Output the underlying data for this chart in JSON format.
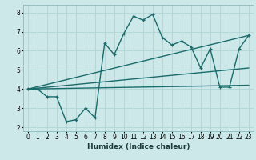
{
  "title": "",
  "xlabel": "Humidex (Indice chaleur)",
  "ylabel": "",
  "bg_color": "#cce8e8",
  "grid_color": "#b0d4d4",
  "line_color": "#1a6b6b",
  "x_ticks": [
    0,
    1,
    2,
    3,
    4,
    5,
    6,
    7,
    8,
    9,
    10,
    11,
    12,
    13,
    14,
    15,
    16,
    17,
    18,
    19,
    20,
    21,
    22,
    23
  ],
  "ylim": [
    1.8,
    8.4
  ],
  "xlim": [
    -0.5,
    23.5
  ],
  "series": [
    {
      "x": [
        0,
        1,
        2,
        3,
        4,
        5,
        6,
        7,
        8,
        9,
        10,
        11,
        12,
        13,
        14,
        15,
        16,
        17,
        18,
        19,
        20,
        21,
        22,
        23
      ],
      "y": [
        4.0,
        4.0,
        3.6,
        3.6,
        2.3,
        2.4,
        3.0,
        2.5,
        6.4,
        5.8,
        6.9,
        7.8,
        7.6,
        7.9,
        6.7,
        6.3,
        6.5,
        6.2,
        5.1,
        6.1,
        4.1,
        4.1,
        6.1,
        6.8
      ]
    },
    {
      "x": [
        0,
        23
      ],
      "y": [
        4.0,
        6.8
      ]
    },
    {
      "x": [
        0,
        23
      ],
      "y": [
        4.0,
        5.1
      ]
    },
    {
      "x": [
        0,
        23
      ],
      "y": [
        4.0,
        4.2
      ]
    }
  ]
}
